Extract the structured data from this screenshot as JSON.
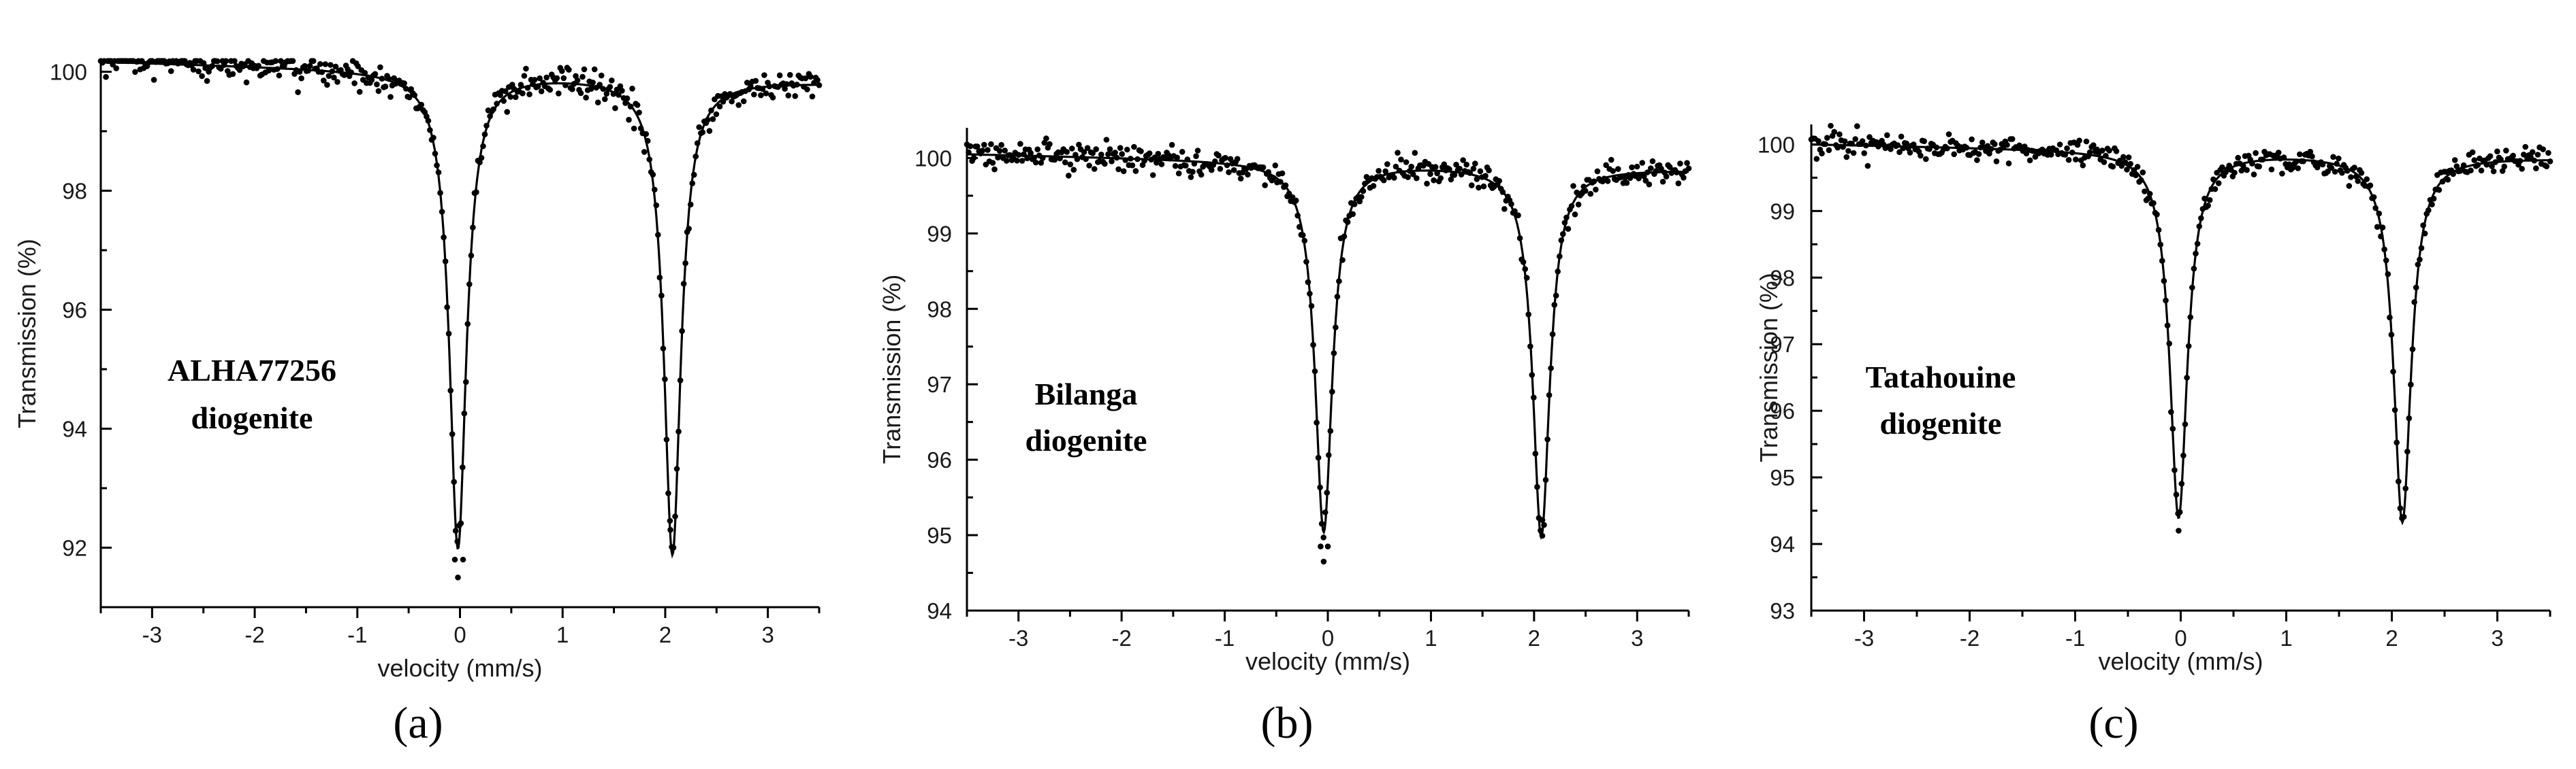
{
  "chart_data": [
    {
      "type": "scatter",
      "panel_label": "(a)",
      "annotation": [
        "ALHA77256",
        "diogenite"
      ],
      "xlabel": "velocity (mm/s)",
      "ylabel": "Transmission (%)",
      "xlim": [
        -3.5,
        3.5
      ],
      "ylim": [
        91.0,
        100.2
      ],
      "xticks": [
        -3,
        -2,
        -1,
        0,
        1,
        2,
        3
      ],
      "yticks": [
        92,
        94,
        96,
        98,
        100
      ],
      "grid": false,
      "series": [
        {
          "name": "doublet fit",
          "kind": "line",
          "baseline": 100.0,
          "baseline_slope": -0.05,
          "peaks": [
            {
              "center": -0.02,
              "depth": 8.0,
              "hwhm": 0.1
            },
            {
              "center": 2.07,
              "depth": 8.0,
              "hwhm": 0.1
            }
          ]
        },
        {
          "name": "measured data",
          "kind": "points",
          "noise": 0.13,
          "count": 420,
          "min_points": [
            [
              -0.02,
              91.5
            ],
            [
              -0.05,
              91.8
            ],
            [
              0.03,
              91.8
            ],
            [
              2.05,
              92.3
            ]
          ]
        }
      ]
    },
    {
      "type": "scatter",
      "panel_label": "(b)",
      "annotation": [
        "Bilanga",
        "diogenite"
      ],
      "xlabel": "velocity (mm/s)",
      "ylabel": "Transmission (%)",
      "xlim": [
        -3.5,
        3.5
      ],
      "ylim": [
        94.0,
        100.4
      ],
      "xticks": [
        -3,
        -2,
        -1,
        0,
        1,
        2,
        3
      ],
      "yticks": [
        94,
        95,
        96,
        97,
        98,
        99,
        100
      ],
      "grid": false,
      "series": [
        {
          "name": "doublet fit",
          "kind": "line",
          "baseline": 99.95,
          "baseline_slope": -0.03,
          "peaks": [
            {
              "center": -0.04,
              "depth": 4.9,
              "hwhm": 0.1
            },
            {
              "center": 2.07,
              "depth": 4.9,
              "hwhm": 0.1
            }
          ]
        },
        {
          "name": "measured data",
          "kind": "points",
          "noise": 0.09,
          "count": 420,
          "min_points": [
            [
              -0.04,
              94.65
            ],
            [
              -0.07,
              94.85
            ],
            [
              0.0,
              94.85
            ],
            [
              2.08,
              95.2
            ]
          ]
        }
      ]
    },
    {
      "type": "scatter",
      "panel_label": "(c)",
      "annotation": [
        "Tatahouine",
        "diogenite"
      ],
      "xlabel": "velocity (mm/s)",
      "ylabel": "Transmission (%)",
      "xlim": [
        -3.5,
        3.5
      ],
      "ylim": [
        93.0,
        100.3
      ],
      "xticks": [
        -3,
        -2,
        -1,
        0,
        1,
        2,
        3
      ],
      "yticks": [
        93,
        94,
        95,
        96,
        97,
        98,
        99,
        100
      ],
      "grid": false,
      "series": [
        {
          "name": "doublet fit",
          "kind": "line",
          "baseline": 99.9,
          "baseline_slope": -0.03,
          "peaks": [
            {
              "center": -0.02,
              "depth": 5.5,
              "hwhm": 0.1
            },
            {
              "center": 2.1,
              "depth": 5.5,
              "hwhm": 0.1
            }
          ]
        },
        {
          "name": "measured data",
          "kind": "points",
          "noise": 0.1,
          "count": 420,
          "min_points": [
            [
              -0.02,
              94.2
            ],
            [
              2.1,
              94.4
            ]
          ]
        }
      ]
    }
  ]
}
